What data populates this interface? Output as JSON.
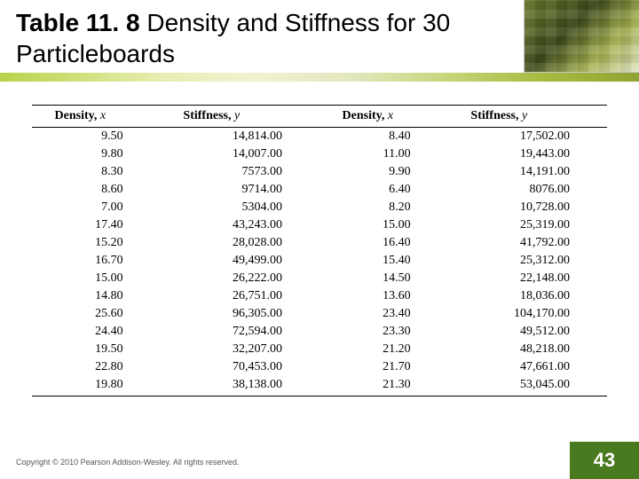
{
  "title": {
    "prefix": "Table 11. 8",
    "rest": "Density and Stiffness for 30 Particleboards"
  },
  "accent_bar": {
    "gradient": [
      "#b7d24b",
      "#cfe07a",
      "#e8edb2",
      "#f0f2d0",
      "#e3e7bf",
      "#c6d57a",
      "#a7bb3f",
      "#8fa531"
    ]
  },
  "table": {
    "type": "table",
    "font_family": "Times New Roman",
    "header_fontsize": 14,
    "body_fontsize": 14,
    "border_color": "#000000",
    "background_color": "#ffffff",
    "columns": [
      {
        "label": "Density,",
        "var": "x",
        "align": "right"
      },
      {
        "label": "Stiffness,",
        "var": "y",
        "align": "right"
      },
      {
        "label": "Density,",
        "var": "x",
        "align": "right"
      },
      {
        "label": "Stiffness,",
        "var": "y",
        "align": "right"
      }
    ],
    "rows": [
      [
        "9.50",
        "14,814.00",
        "8.40",
        "17,502.00"
      ],
      [
        "9.80",
        "14,007.00",
        "11.00",
        "19,443.00"
      ],
      [
        "8.30",
        "7573.00",
        "9.90",
        "14,191.00"
      ],
      [
        "8.60",
        "9714.00",
        "6.40",
        "8076.00"
      ],
      [
        "7.00",
        "5304.00",
        "8.20",
        "10,728.00"
      ],
      [
        "17.40",
        "43,243.00",
        "15.00",
        "25,319.00"
      ],
      [
        "15.20",
        "28,028.00",
        "16.40",
        "41,792.00"
      ],
      [
        "16.70",
        "49,499.00",
        "15.40",
        "25,312.00"
      ],
      [
        "15.00",
        "26,222.00",
        "14.50",
        "22,148.00"
      ],
      [
        "14.80",
        "26,751.00",
        "13.60",
        "18,036.00"
      ],
      [
        "25.60",
        "96,305.00",
        "23.40",
        "104,170.00"
      ],
      [
        "24.40",
        "72,594.00",
        "23.30",
        "49,512.00"
      ],
      [
        "19.50",
        "32,207.00",
        "21.20",
        "48,218.00"
      ],
      [
        "22.80",
        "70,453.00",
        "21.70",
        "47,661.00"
      ],
      [
        "19.80",
        "38,138.00",
        "21.30",
        "53,045.00"
      ]
    ]
  },
  "footer": {
    "copyright": "Copyright © 2010 Pearson Addison-Wesley. All rights reserved.",
    "page_number": "43",
    "page_bg": "#4a7a1f",
    "page_color": "#ffffff"
  }
}
